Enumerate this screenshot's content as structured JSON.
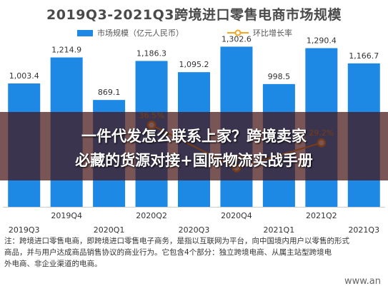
{
  "chart_data": {
    "type": "bar",
    "title": "2019Q3-2021Q3跨境进口零售电商市场规模",
    "categories": [
      "2019Q3",
      "2019Q4",
      "2020Q1",
      "2020Q2",
      "2020Q3",
      "2020Q4",
      "2021Q1",
      "2021Q2",
      "2021Q3"
    ],
    "series": [
      {
        "name": "市场规模（亿元人民币）",
        "type": "bar",
        "values": [
          1003.4,
          1214.9,
          869.1,
          1186.3,
          1095.2,
          1302.6,
          998.5,
          1290.4,
          1166.7
        ],
        "labels": [
          "1,003.4",
          "1,214.9",
          "869.1",
          "1,186.3",
          "1,095.2",
          "1,302.6",
          "998.5",
          "1,290.4",
          "1,166.7"
        ],
        "color": "#1e88e5"
      },
      {
        "name": "环比增长率",
        "type": "line",
        "values": [
          null,
          null,
          null,
          36.5,
          null,
          18.9,
          null,
          29.2,
          null
        ],
        "labels": [
          "",
          "",
          "",
          "36.5%",
          "",
          "18.9%",
          "",
          "29.2%",
          ""
        ],
        "color": "#f5a623"
      }
    ],
    "ylim": [
      0,
      1450
    ],
    "grid": false,
    "legend": "top"
  },
  "overlay": {
    "line1": "一件代发怎么联系上家？跨境卖家",
    "line2": "必藏的货源对接+国际物流实战手册"
  },
  "notes": [
    "注：跨境进口零售电商，即跨境进口零售电子商务，是指以互联网为平台，向中国境内用户以零售的形式",
    "商品，并与用户达成商品销售协议的商业行为。它包含4个部分：独立跨境电商、从属主站型跨境电",
    "外电商、非企业渠道的电商。"
  ],
  "watermark": "www.an"
}
